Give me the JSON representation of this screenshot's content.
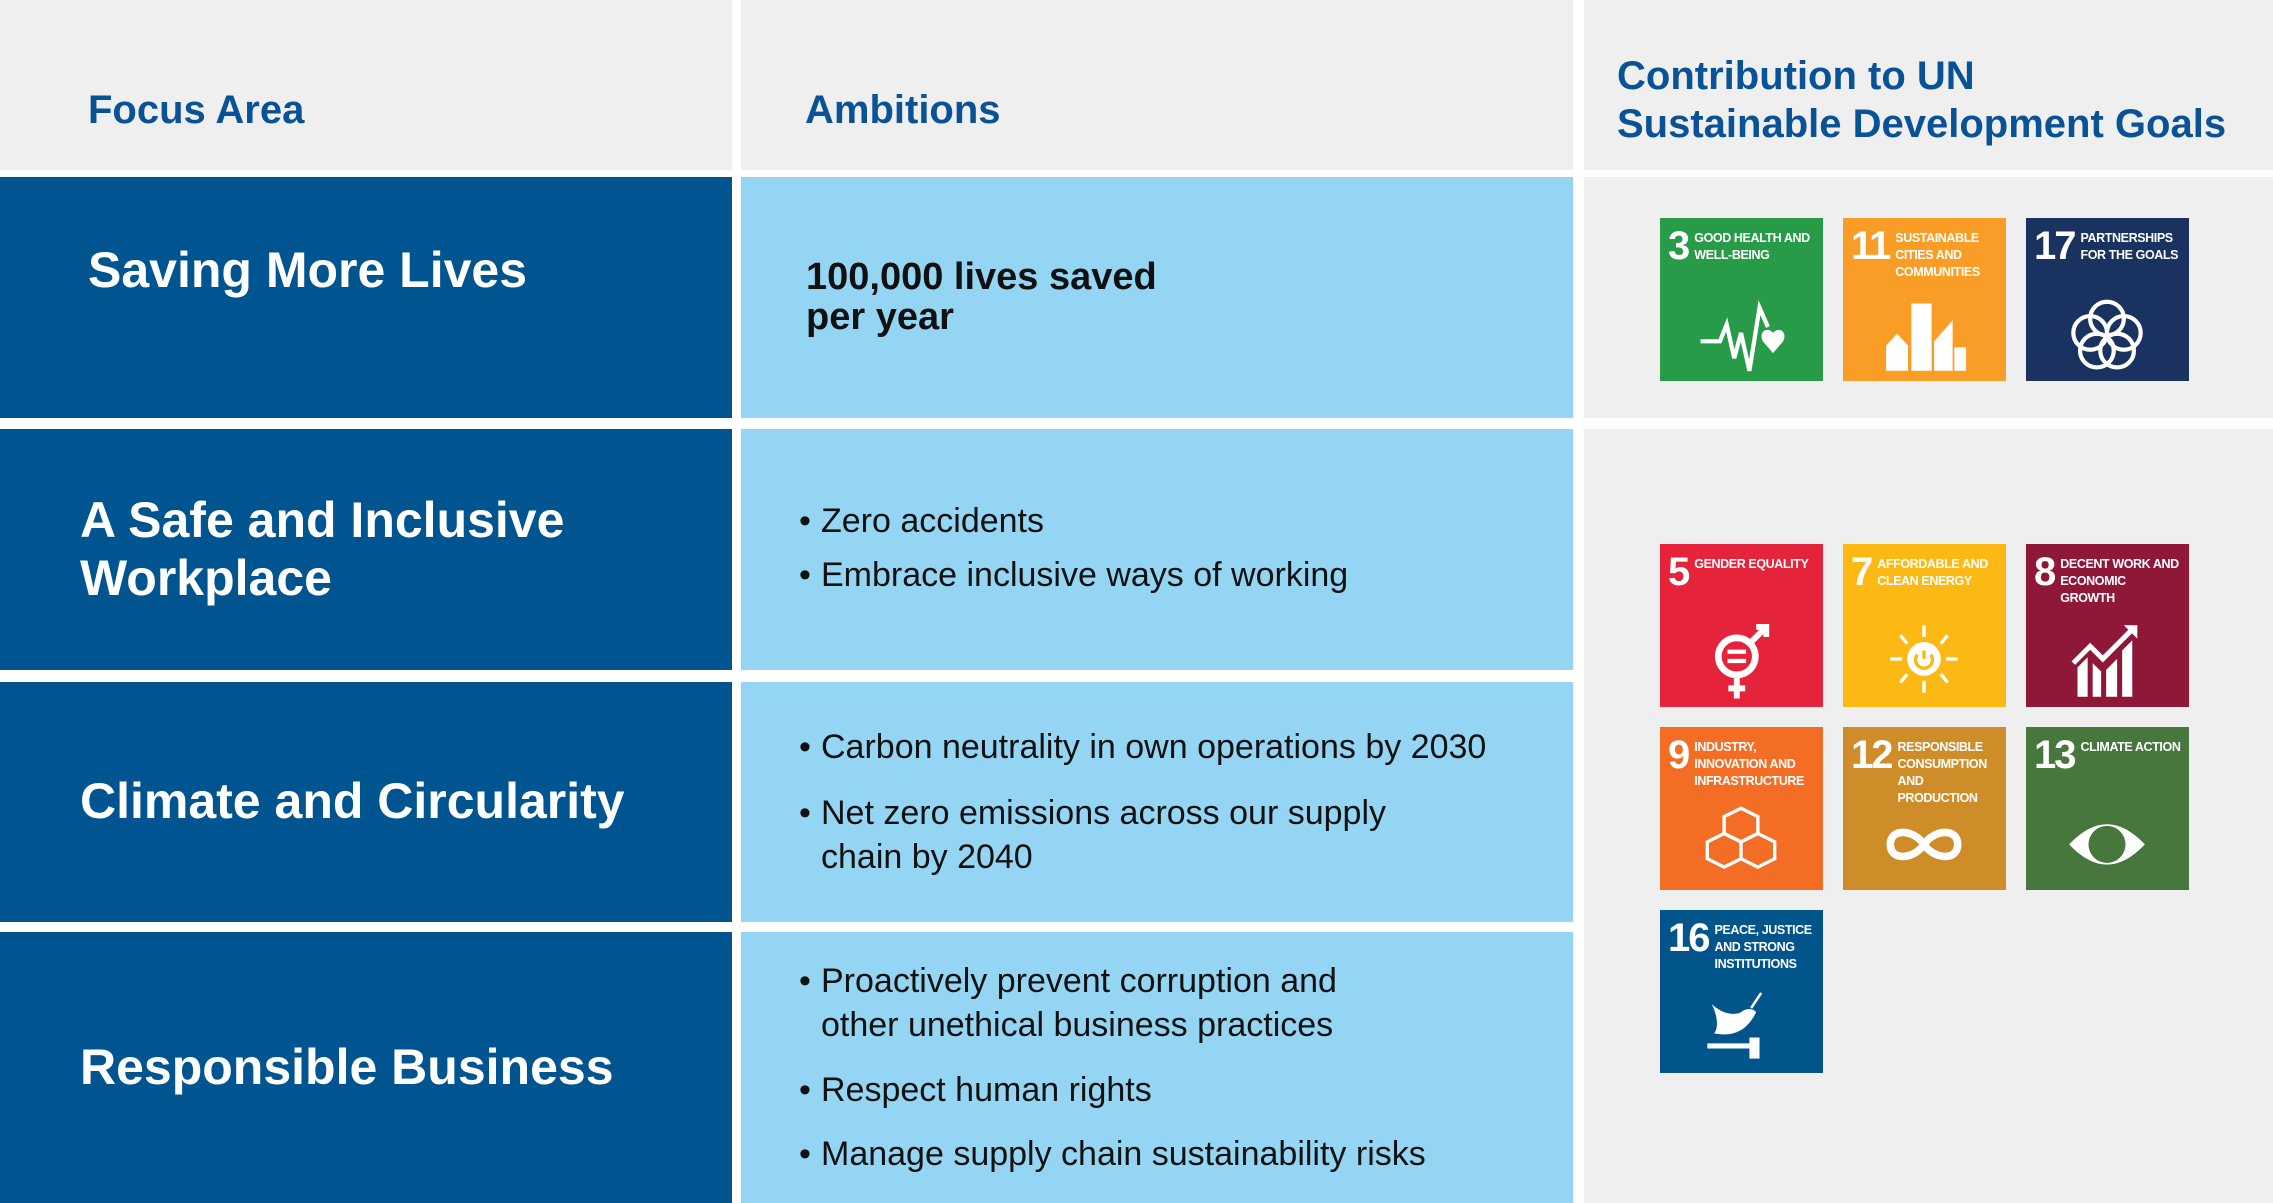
{
  "headers": {
    "focus": "Focus Area",
    "ambitions": "Ambitions",
    "sdg_line1": "Contribution to UN",
    "sdg_line2": "Sustainable Development Goals"
  },
  "rows": [
    {
      "focus": "Saving More Lives",
      "ambition_bold_1": "100,000 lives saved",
      "ambition_bold_2": "per year"
    },
    {
      "focus": "A Safe and Inclusive Workplace",
      "bullets": [
        "Zero accidents",
        "Embrace inclusive ways of working"
      ]
    },
    {
      "focus": "Climate and Circularity",
      "bullets": [
        "Carbon neutrality in own operations by 2030",
        "Net zero emissions across our supply chain by 2040"
      ]
    },
    {
      "focus": "Responsible Business",
      "bullets": [
        "Proactively prevent corruption and other unethical business practices",
        "Respect human rights",
        "Manage supply chain sustainability risks"
      ]
    }
  ],
  "sdgs": [
    {
      "num": "3",
      "label": "Good health and well-being",
      "color": "#279b48",
      "icon": "heartbeat-icon"
    },
    {
      "num": "11",
      "label": "Sustainable cities and communities",
      "color": "#f99d26",
      "icon": "city-icon"
    },
    {
      "num": "17",
      "label": "Partnerships for the goals",
      "color": "#19325f",
      "icon": "partnership-rings-icon"
    },
    {
      "num": "5",
      "label": "Gender equality",
      "color": "#e5243b",
      "icon": "gender-equality-icon"
    },
    {
      "num": "7",
      "label": "Affordable and clean energy",
      "color": "#fcb913",
      "icon": "sun-power-icon"
    },
    {
      "num": "8",
      "label": "Decent work and economic growth",
      "color": "#8f1838",
      "icon": "growth-chart-icon"
    },
    {
      "num": "9",
      "label": "Industry, innovation and infrastructure",
      "color": "#f36d25",
      "icon": "cubes-icon"
    },
    {
      "num": "12",
      "label": "Responsible consumption and production",
      "color": "#cf8d2a",
      "icon": "infinity-icon"
    },
    {
      "num": "13",
      "label": "Climate action",
      "color": "#48773e",
      "icon": "eye-globe-icon"
    },
    {
      "num": "16",
      "label": "Peace, justice and strong institutions",
      "color": "#02558b",
      "icon": "dove-gavel-icon"
    }
  ],
  "colors": {
    "focus_bg": "#00548f",
    "ambition_bg": "#95d5f4",
    "header_bg": "#efefef",
    "header_text": "#0a5296"
  }
}
